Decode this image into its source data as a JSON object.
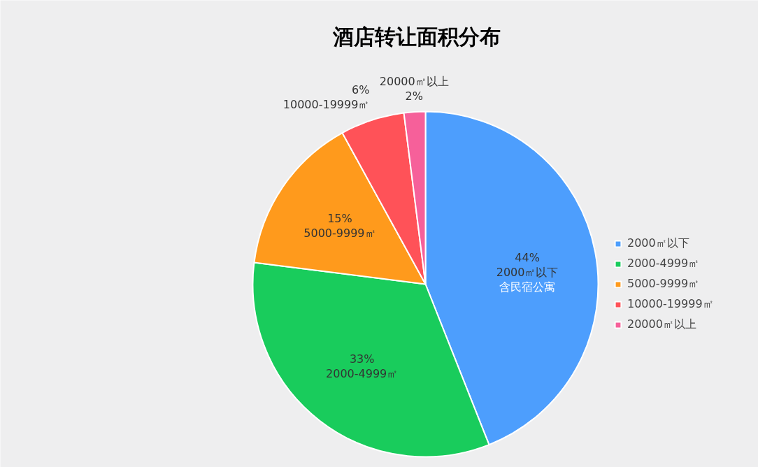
{
  "chart_data": {
    "type": "pie",
    "title": "酒店转让面积分布",
    "categories": [
      "2000㎡以下",
      "2000-4999㎡",
      "5000-9999㎡",
      "10000-19999㎡",
      "20000㎡以上"
    ],
    "values": [
      44,
      33,
      15,
      6,
      2
    ],
    "colors": [
      "#4d9efd",
      "#19cc5c",
      "#ff9a1c",
      "#ff5258",
      "#f6609a"
    ],
    "value_labels": [
      "44%\n2000㎡以下",
      "33%\n2000-4999㎡",
      "15%\n5000-9999㎡",
      "6%\n10000-19999㎡",
      "20000㎡以上\n2%"
    ],
    "annotations": [
      {
        "text": "含民宿公寓",
        "x": "2000㎡以下"
      }
    ],
    "legend": "right"
  }
}
